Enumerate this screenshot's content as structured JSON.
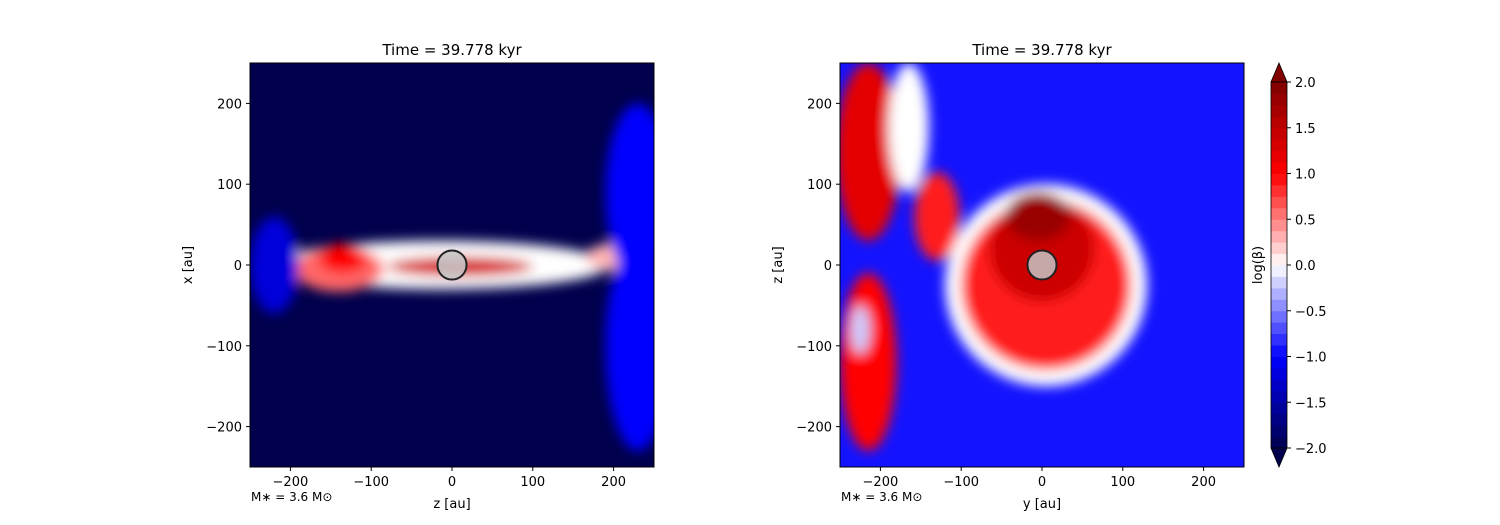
{
  "chart_data": [
    {
      "type": "heatmap",
      "title": "Time = 39.778 kyr",
      "xlabel": "z [au]",
      "ylabel": "x [au]",
      "xlim": [
        -250,
        250
      ],
      "ylim": [
        -250,
        250
      ],
      "xticks": [
        -200,
        -100,
        0,
        100,
        200
      ],
      "yticks": [
        -200,
        -100,
        0,
        100,
        200
      ],
      "annotation": "M$_*$ = 3.6 M$_\\odot$",
      "annotation_text": "M∗ = 3.6 M⊙",
      "sink_particle": {
        "x": 0,
        "y": 0,
        "radius": 18
      },
      "features": [
        {
          "shape": "ellipse",
          "cx": -15,
          "cy": 0,
          "rx": 210,
          "ry": 30,
          "value": 0.0
        },
        {
          "shape": "ellipse",
          "cx": -140,
          "cy": -5,
          "rx": 55,
          "ry": 28,
          "value": 0.6
        },
        {
          "shape": "ellipse",
          "cx": -135,
          "cy": 8,
          "rx": 30,
          "ry": 18,
          "value": 1.0
        },
        {
          "shape": "ellipse",
          "cx": 10,
          "cy": -2,
          "rx": 90,
          "ry": 12,
          "value": 1.3
        },
        {
          "shape": "ellipse",
          "cx": 210,
          "cy": 10,
          "rx": 45,
          "ry": 18,
          "value": 0.3
        },
        {
          "shape": "ellipse",
          "cx": 230,
          "cy": -100,
          "rx": 40,
          "ry": 130,
          "value": -1.0
        },
        {
          "shape": "ellipse",
          "cx": 230,
          "cy": 90,
          "rx": 40,
          "ry": 110,
          "value": -1.0
        },
        {
          "shape": "ellipse",
          "cx": -220,
          "cy": 0,
          "rx": 30,
          "ry": 60,
          "value": -1.2
        }
      ]
    },
    {
      "type": "heatmap",
      "title": "Time = 39.778 kyr",
      "xlabel": "y [au]",
      "ylabel": "z [au]",
      "xlim": [
        -250,
        250
      ],
      "ylim": [
        -250,
        250
      ],
      "xticks": [
        -200,
        -100,
        0,
        100,
        200
      ],
      "yticks": [
        -200,
        -100,
        0,
        100,
        200
      ],
      "annotation": "M$_*$ = 3.6 M$_\\odot$",
      "annotation_text": "M∗ = 3.6 M⊙",
      "sink_particle": {
        "x": 0,
        "y": 0,
        "radius": 18
      },
      "features": [
        {
          "shape": "ellipse",
          "cx": 5,
          "cy": -25,
          "rx": 125,
          "ry": 125,
          "value": 0.0
        },
        {
          "shape": "ellipse",
          "cx": 5,
          "cy": -25,
          "rx": 105,
          "ry": 105,
          "value": 0.9
        },
        {
          "shape": "ellipse",
          "cx": 0,
          "cy": 20,
          "rx": 65,
          "ry": 65,
          "value": 1.4
        },
        {
          "shape": "ellipse",
          "cx": -5,
          "cy": 60,
          "rx": 40,
          "ry": 30,
          "value": 1.8
        },
        {
          "shape": "ellipse",
          "cx": -215,
          "cy": 140,
          "rx": 40,
          "ry": 110,
          "value": 1.2
        },
        {
          "shape": "ellipse",
          "cx": -215,
          "cy": -120,
          "rx": 35,
          "ry": 110,
          "value": 1.0
        },
        {
          "shape": "ellipse",
          "cx": -225,
          "cy": -80,
          "rx": 12,
          "ry": 30,
          "value": -0.2
        },
        {
          "shape": "ellipse",
          "cx": -165,
          "cy": 170,
          "rx": 25,
          "ry": 80,
          "value": 0.0
        },
        {
          "shape": "ellipse",
          "cx": -130,
          "cy": 60,
          "rx": 28,
          "ry": 55,
          "value": 0.9
        }
      ]
    }
  ],
  "colorbar": {
    "label": "log(β)",
    "vmin": -2.0,
    "vmax": 2.0,
    "extend": "both",
    "colormap": "seismic",
    "ticks": [
      "−2.0",
      "−1.5",
      "−1.0",
      "−0.5",
      "0.0",
      "0.5",
      "1.0",
      "1.5",
      "2.0"
    ],
    "tick_values": [
      -2.0,
      -1.5,
      -1.0,
      -0.5,
      0.0,
      0.5,
      1.0,
      1.5,
      2.0
    ]
  }
}
